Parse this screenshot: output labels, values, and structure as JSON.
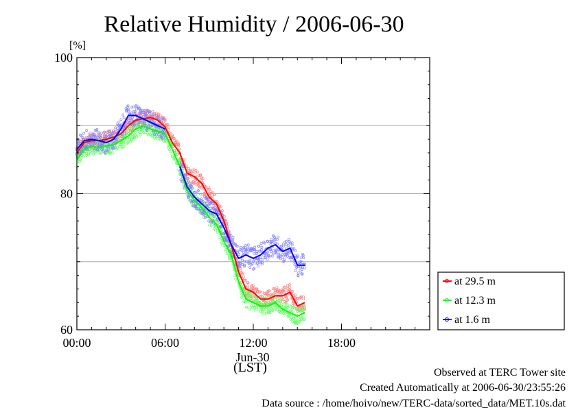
{
  "chart_data": {
    "type": "line",
    "title": "Relative Humidity / 2006-06-30",
    "ylabel": "[%]",
    "xlabel": "(LST)",
    "date_label": "Jun-30",
    "ylim": [
      60,
      100
    ],
    "xlim": [
      0,
      24
    ],
    "x_unit": "hour of day",
    "yticks": [
      "60",
      "80",
      "100"
    ],
    "ygrid": [
      70,
      80,
      90
    ],
    "xticks": [
      {
        "x": 0,
        "label": "00:00"
      },
      {
        "x": 6,
        "label": "06:00"
      },
      {
        "x": 12,
        "label": "12:00"
      },
      {
        "x": 18,
        "label": "18:00"
      }
    ],
    "legend_position": "right",
    "x": [
      0.0,
      0.5,
      1.0,
      1.5,
      2.0,
      2.5,
      3.0,
      3.5,
      4.0,
      4.5,
      5.0,
      5.5,
      6.0,
      6.5,
      7.0,
      7.5,
      8.0,
      8.5,
      9.0,
      9.5,
      10.0,
      10.5,
      11.0,
      11.5,
      12.0,
      12.5,
      13.0,
      13.5,
      14.0,
      14.5,
      15.0,
      15.5
    ],
    "series": [
      {
        "name": "at 29.5 m",
        "color": "#ff0000",
        "values": [
          86.0,
          87.5,
          87.8,
          87.8,
          88.0,
          88.3,
          88.8,
          90.0,
          90.8,
          91.0,
          91.2,
          90.8,
          89.8,
          87.5,
          86.0,
          83.0,
          82.5,
          81.5,
          79.5,
          78.5,
          76.0,
          72.5,
          68.5,
          66.0,
          65.5,
          64.5,
          64.5,
          65.0,
          65.0,
          65.5,
          63.5,
          64.0
        ]
      },
      {
        "name": "at 12.3 m",
        "color": "#00ff00",
        "values": [
          85.0,
          86.5,
          87.0,
          86.8,
          87.0,
          87.2,
          87.8,
          88.5,
          89.5,
          90.0,
          89.5,
          89.2,
          88.8,
          86.5,
          84.0,
          80.5,
          79.0,
          78.0,
          76.5,
          75.5,
          73.0,
          71.0,
          67.0,
          64.5,
          64.0,
          63.5,
          63.5,
          64.0,
          63.0,
          62.5,
          62.0,
          62.5
        ]
      },
      {
        "name": "at 1.6 m",
        "color": "#0000ff",
        "values": [
          86.5,
          87.8,
          88.0,
          87.8,
          87.5,
          88.0,
          89.5,
          91.5,
          91.5,
          91.0,
          90.5,
          90.0,
          89.5,
          null,
          84.0,
          81.0,
          79.5,
          78.5,
          77.5,
          77.0,
          75.0,
          72.5,
          70.5,
          71.0,
          70.5,
          71.0,
          72.0,
          72.5,
          71.5,
          72.0,
          69.5,
          69.5
        ]
      }
    ]
  },
  "footer": {
    "observed": "Observed at TERC Tower site",
    "created": "Created Automatically at 2006-06-30/23:55:26",
    "source": "Data source : /home/hoivo/new/TERC-data/sorted_data/MET.10s.dat"
  }
}
